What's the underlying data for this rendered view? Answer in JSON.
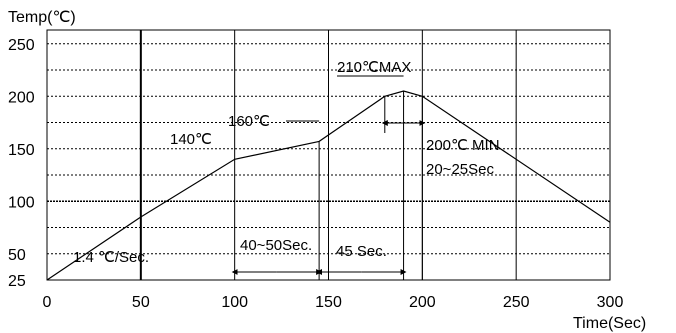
{
  "chart_data": {
    "type": "line",
    "title": "",
    "ylabel": "Temp(℃)",
    "xlabel": "Time(Sec)",
    "xlim": [
      0,
      300
    ],
    "ylim": [
      25,
      250
    ],
    "x_ticks": [
      0,
      50,
      100,
      150,
      200,
      250,
      300
    ],
    "y_ticks": [
      25,
      50,
      100,
      150,
      200,
      250
    ],
    "grid": true,
    "series": [
      {
        "name": "",
        "points": [
          {
            "x": 0,
            "y": 25
          },
          {
            "x": 50,
            "y": 85
          },
          {
            "x": 100,
            "y": 140
          },
          {
            "x": 145,
            "y": 157
          },
          {
            "x": 180,
            "y": 200
          },
          {
            "x": 190,
            "y": 205
          },
          {
            "x": 200,
            "y": 200
          },
          {
            "x": 300,
            "y": 80
          }
        ]
      }
    ],
    "annotations": {
      "ramp_rate": "1.4 ℃/Sec.",
      "t140": "140℃",
      "t160": "160℃",
      "tmax": "210℃MAX",
      "tmin": "200℃ MIN",
      "time_above": "20~25Sec",
      "preheat": "40~50Sec.",
      "reflow": "45 Sec."
    }
  }
}
